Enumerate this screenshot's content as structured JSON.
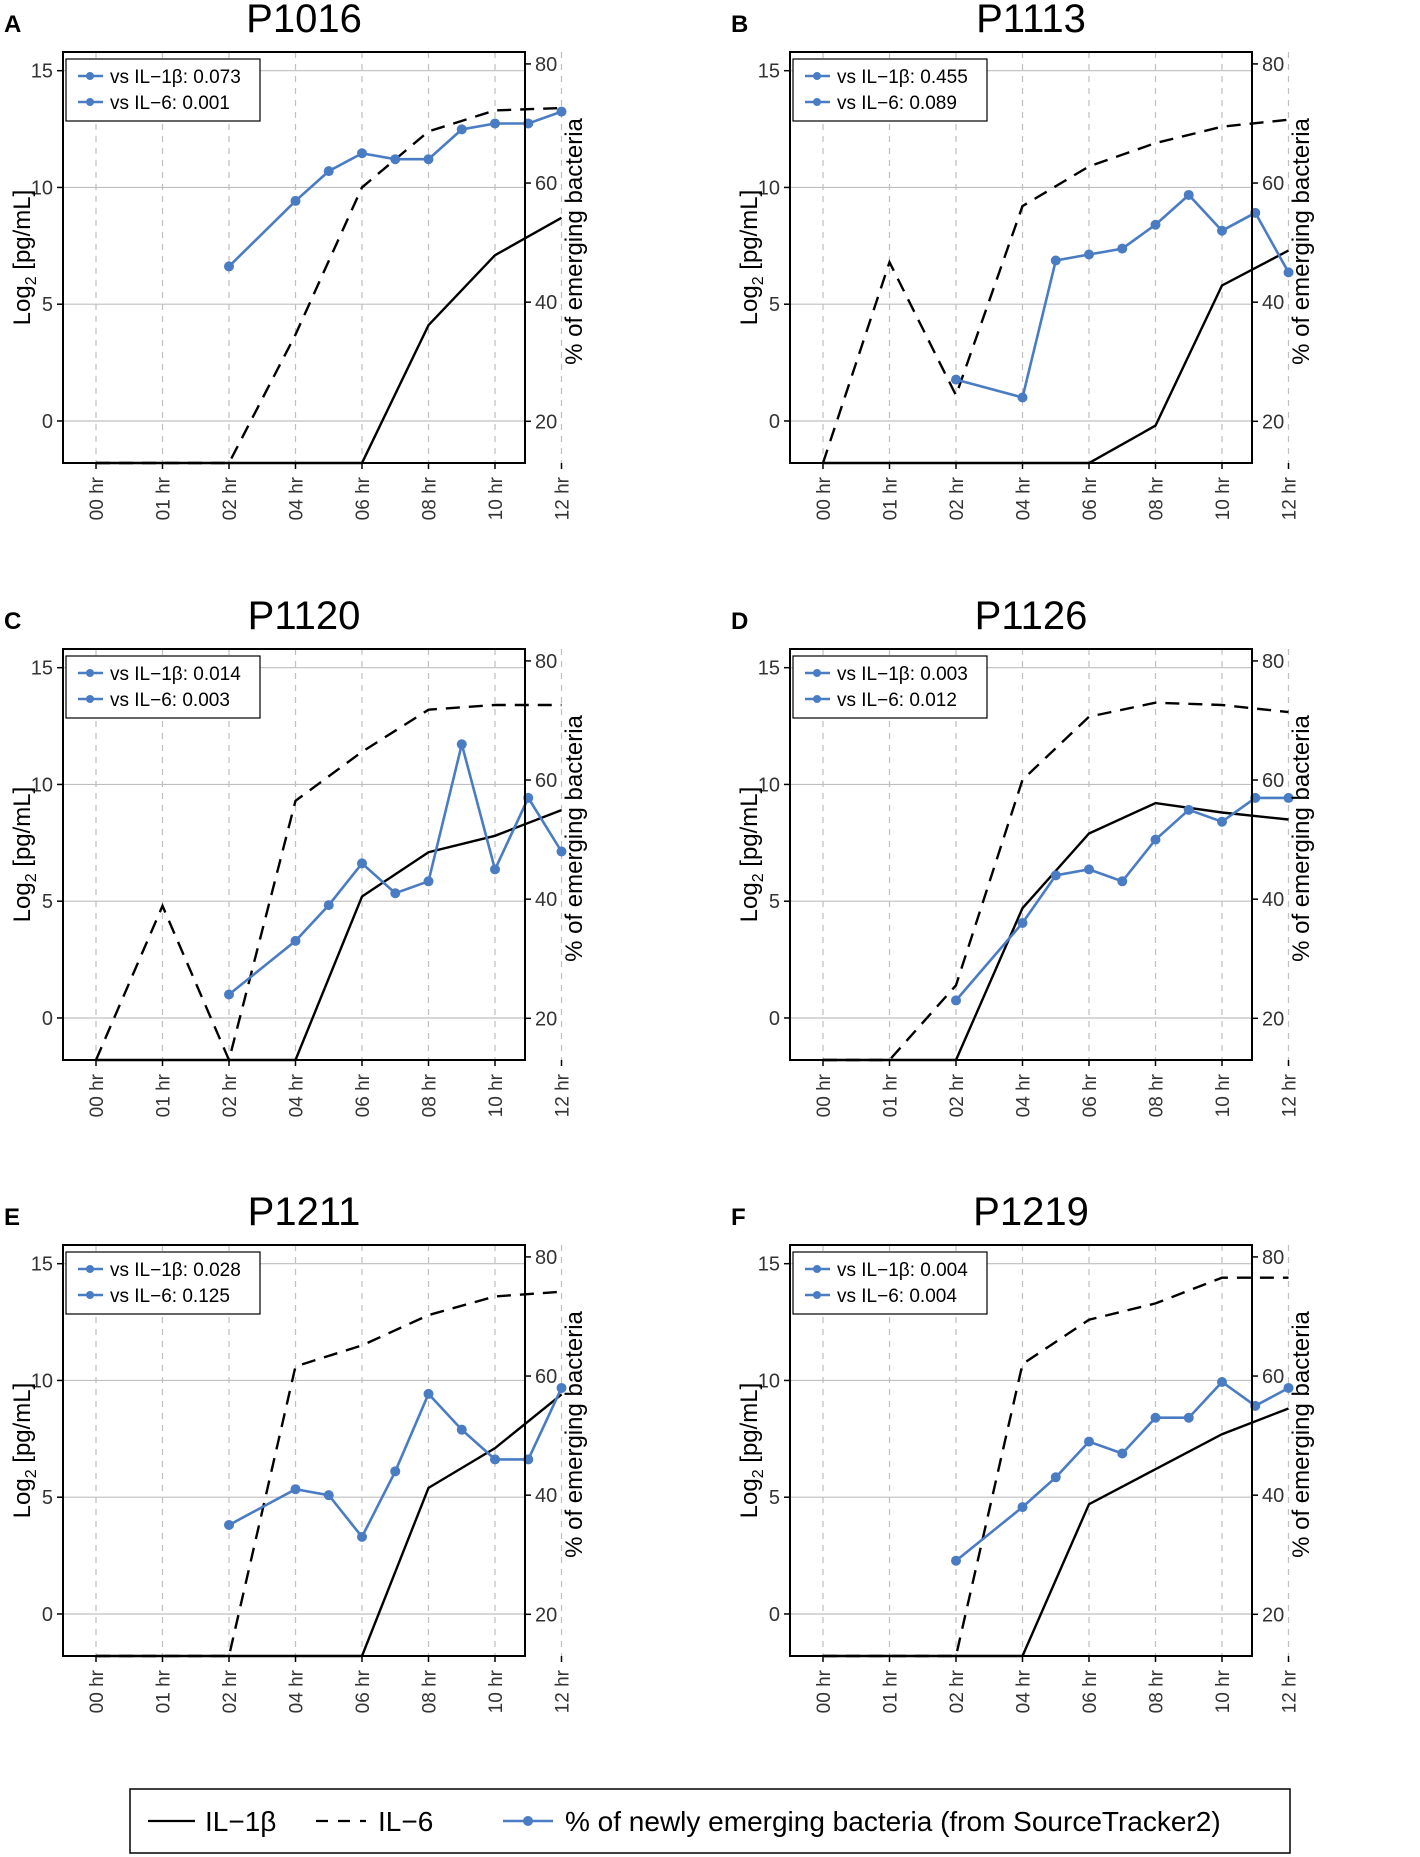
{
  "colors": {
    "axis": "#000000",
    "grid": "#bfbfbf",
    "blue": "#4a7cc4",
    "black": "#000000"
  },
  "axes": {
    "left_label_main": "Log",
    "left_label_sub": "2",
    "left_label_rest": " [pg/mL]",
    "right_label": "% of emerging bacteria",
    "left_ticks": [
      0,
      5,
      10,
      15
    ],
    "right_ticks": [
      20,
      40,
      60,
      80
    ],
    "x_ticks": [
      "00 hr",
      "01 hr",
      "02 hr",
      "04 hr",
      "06 hr",
      "08 hr",
      "10 hr",
      "12 hr"
    ]
  },
  "legend": {
    "il1b": "IL−1β",
    "il6": "IL−6",
    "emerging": "% of newly emerging bacteria (from SourceTracker2)"
  },
  "chart_data": [
    {
      "type": "line",
      "panel": "A",
      "title": "P1016",
      "ylim_left": [
        -1.8,
        15.8
      ],
      "ylim_right": [
        13,
        82
      ],
      "il1b": {
        "x": [
          0,
          1,
          2,
          3,
          4,
          5,
          6,
          7
        ],
        "y": [
          -2,
          -2,
          -2,
          -2,
          -2,
          4.1,
          7.1,
          8.7
        ]
      },
      "il6": {
        "x": [
          0,
          1,
          2,
          3,
          4,
          5,
          6,
          7
        ],
        "y": [
          -2,
          -2,
          -2,
          3.7,
          10,
          12.4,
          13.3,
          13.4
        ]
      },
      "emerging": {
        "x": [
          2,
          3,
          3.5,
          4,
          4.5,
          5,
          5.5,
          6,
          6.5,
          7
        ],
        "y": [
          46,
          57,
          62,
          65,
          64,
          64,
          69,
          70,
          70,
          72
        ]
      },
      "annotations": [
        "vs IL−1β: 0.073",
        "vs IL−6: 0.001"
      ]
    },
    {
      "type": "line",
      "panel": "B",
      "title": "P1113",
      "ylim_left": [
        -1.8,
        15.8
      ],
      "ylim_right": [
        13,
        82
      ],
      "il1b": {
        "x": [
          0,
          1,
          2,
          3,
          4,
          5,
          6,
          7
        ],
        "y": [
          -2,
          -2,
          -2,
          -2,
          -2,
          -0.2,
          5.8,
          7.3
        ]
      },
      "il6": {
        "x": [
          0,
          1,
          2,
          3,
          4,
          5,
          6,
          7
        ],
        "y": [
          -2,
          6.8,
          1.1,
          9.2,
          10.9,
          11.9,
          12.6,
          12.9
        ]
      },
      "emerging": {
        "x": [
          2,
          3,
          3.5,
          4,
          4.5,
          5,
          5.5,
          6,
          6.5,
          7
        ],
        "y": [
          27,
          24,
          47,
          48,
          49,
          53,
          58,
          52,
          55,
          45
        ]
      },
      "annotations": [
        "vs IL−1β: 0.455",
        "vs IL−6: 0.089"
      ]
    },
    {
      "type": "line",
      "panel": "C",
      "title": "P1120",
      "ylim_left": [
        -1.8,
        15.8
      ],
      "ylim_right": [
        13,
        82
      ],
      "il1b": {
        "x": [
          0,
          1,
          2,
          3,
          4,
          5,
          6,
          7
        ],
        "y": [
          -2,
          -2,
          -2,
          -2,
          5.2,
          7.1,
          7.8,
          8.9
        ]
      },
      "il6": {
        "x": [
          0,
          1,
          2,
          3,
          4,
          5,
          6,
          7
        ],
        "y": [
          -2,
          4.8,
          -2,
          9.3,
          11.4,
          13.2,
          13.4,
          13.4
        ]
      },
      "emerging": {
        "x": [
          2,
          3,
          3.5,
          4,
          4.5,
          5,
          5.5,
          6,
          6.5,
          7
        ],
        "y": [
          24,
          33,
          39,
          46,
          41,
          43,
          66,
          45,
          57,
          48
        ]
      },
      "annotations": [
        "vs IL−1β: 0.014",
        "vs IL−6: 0.003"
      ]
    },
    {
      "type": "line",
      "panel": "D",
      "title": "P1126",
      "ylim_left": [
        -1.8,
        15.8
      ],
      "ylim_right": [
        13,
        82
      ],
      "il1b": {
        "x": [
          0,
          1,
          2,
          3,
          4,
          5,
          6,
          7
        ],
        "y": [
          -2,
          -2,
          -2,
          4.7,
          7.9,
          9.2,
          8.8,
          8.5
        ]
      },
      "il6": {
        "x": [
          0,
          1,
          2,
          3,
          4,
          5,
          6,
          7
        ],
        "y": [
          -2,
          -2,
          1.4,
          10.2,
          12.9,
          13.5,
          13.4,
          13.1
        ]
      },
      "emerging": {
        "x": [
          2,
          3,
          3.5,
          4,
          4.5,
          5,
          5.5,
          6,
          6.5,
          7
        ],
        "y": [
          23,
          36,
          44,
          45,
          43,
          50,
          55,
          53,
          57,
          57
        ]
      },
      "annotations": [
        "vs IL−1β: 0.003",
        "vs IL−6: 0.012"
      ]
    },
    {
      "type": "line",
      "panel": "E",
      "title": "P1211",
      "ylim_left": [
        -1.8,
        15.8
      ],
      "ylim_right": [
        13,
        82
      ],
      "il1b": {
        "x": [
          0,
          1,
          2,
          3,
          4,
          5,
          6,
          7
        ],
        "y": [
          -2,
          -2,
          -2,
          -2,
          -2,
          5.4,
          7.1,
          9.4
        ]
      },
      "il6": {
        "x": [
          0,
          1,
          2,
          3,
          4,
          5,
          6,
          7
        ],
        "y": [
          -2,
          -2,
          -2,
          10.6,
          11.5,
          12.8,
          13.6,
          13.8
        ]
      },
      "emerging": {
        "x": [
          2,
          3,
          3.5,
          4,
          4.5,
          5,
          5.5,
          6,
          6.5,
          7
        ],
        "y": [
          35,
          41,
          40,
          33,
          44,
          57,
          51,
          46,
          46,
          58
        ]
      },
      "annotations": [
        "vs IL−1β: 0.028",
        "vs IL−6: 0.125"
      ]
    },
    {
      "type": "line",
      "panel": "F",
      "title": "P1219",
      "ylim_left": [
        -1.8,
        15.8
      ],
      "ylim_right": [
        13,
        82
      ],
      "il1b": {
        "x": [
          0,
          1,
          2,
          3,
          4,
          5,
          6,
          7
        ],
        "y": [
          -2,
          -2,
          -2,
          -2,
          4.7,
          6.2,
          7.7,
          8.8
        ]
      },
      "il6": {
        "x": [
          0,
          1,
          2,
          3,
          4,
          5,
          6,
          7
        ],
        "y": [
          -2,
          -2,
          -2,
          10.7,
          12.6,
          13.3,
          14.4,
          14.4
        ]
      },
      "emerging": {
        "x": [
          2,
          3,
          3.5,
          4,
          4.5,
          5,
          5.5,
          6,
          6.5,
          7
        ],
        "y": [
          29,
          38,
          43,
          49,
          47,
          53,
          53,
          59,
          55,
          58
        ]
      },
      "annotations": [
        "vs IL−1β: 0.004",
        "vs IL−6: 0.004"
      ]
    }
  ]
}
